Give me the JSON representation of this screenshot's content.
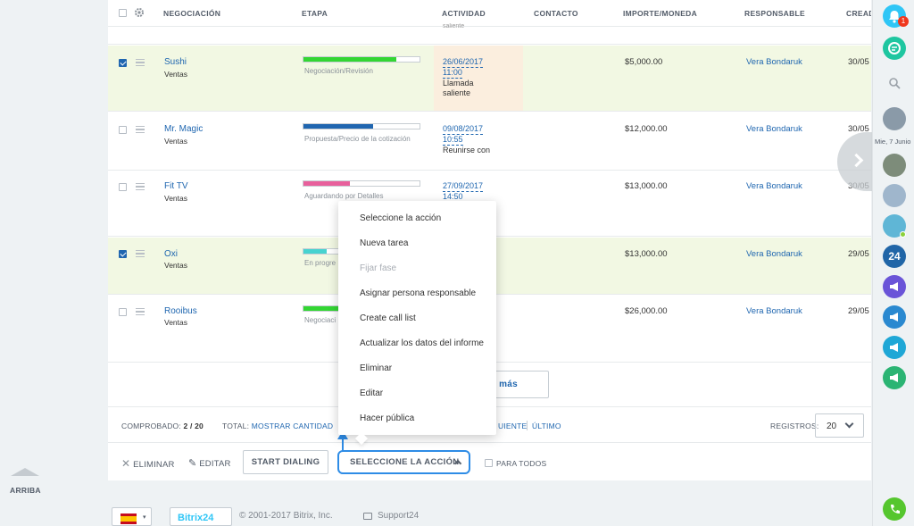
{
  "grid": {
    "columns": [
      "NEGOCIACIÓN",
      "ETAPA",
      "ACTIVIDAD",
      "CONTACTO",
      "IMPORTE/MONEDA",
      "RESPONSABLE",
      "CREAD"
    ],
    "prev_row_text": "saliente",
    "rows": [
      {
        "name": "Sushi",
        "category": "Ventas",
        "stage": "Negociación/Revisión",
        "stage_color": "#33d633",
        "stage_progress": 0.8,
        "activity_date": "26/06/2017",
        "activity_time": "11:00",
        "activity_line1": "Llamada",
        "activity_line2": "saliente",
        "amount": "$5,000.00",
        "responsible": "Vera Bondaruk",
        "created": "30/05",
        "checked": true
      },
      {
        "name": "Mr. Magic",
        "category": "Ventas",
        "stage": "Propuesta/Precio de la cotización",
        "stage_color": "#2066b0",
        "stage_progress": 0.6,
        "activity_date": "09/08/2017",
        "activity_time": "10:55",
        "activity_line1": "Reunirse con",
        "activity_line2": "",
        "amount": "$12,000.00",
        "responsible": "Vera Bondaruk",
        "created": "30/05",
        "checked": false
      },
      {
        "name": "Fit TV",
        "category": "Ventas",
        "stage": "Aguardando por Detalles",
        "stage_color": "#e8609c",
        "stage_progress": 0.4,
        "activity_date": "27/09/2017",
        "activity_time": "14:50",
        "activity_line1": "",
        "activity_line2": "",
        "amount": "$13,000.00",
        "responsible": "Vera Bondaruk",
        "created": "30/05",
        "checked": false
      },
      {
        "name": "Oxi",
        "category": "Ventas",
        "stage": "En progre",
        "stage_color": "#47d3d0",
        "stage_progress": 0.2,
        "activity_date": "",
        "activity_time": "",
        "activity_line1": "",
        "activity_line2": "",
        "amount": "$13,000.00",
        "responsible": "Vera Bondaruk",
        "created": "29/05",
        "checked": true
      },
      {
        "name": "Rooibus",
        "category": "Ventas",
        "stage": "Negociaci",
        "stage_color": "#33d633",
        "stage_progress": 0.8,
        "activity_date": "",
        "activity_time": "",
        "activity_line1": "",
        "activity_line2": "",
        "amount": "$26,000.00",
        "responsible": "Vera Bondaruk",
        "created": "29/05",
        "checked": false
      }
    ],
    "more_label": "r más"
  },
  "pager": {
    "checked_label": "COMPROBADO:",
    "checked_value": "2 / 20",
    "total_label": "TOTAL:",
    "total_link": "MOSTRAR CANTIDAD",
    "next": "UIENTE",
    "last": "ÚLTIMO",
    "records_label": "REGISTROS:",
    "records_value": "20"
  },
  "actions": {
    "delete": "ELIMINAR",
    "edit": "EDITAR",
    "start_dialing": "START DIALING",
    "select_action": "SELECCIONE LA ACCIÓN",
    "for_all": "PARA TODOS"
  },
  "menu": {
    "items": [
      {
        "label": "Seleccione la acción",
        "disabled": false
      },
      {
        "label": "Nueva tarea",
        "disabled": false
      },
      {
        "label": "Fijar fase",
        "disabled": true
      },
      {
        "label": "Asignar persona responsable",
        "disabled": false
      },
      {
        "label": "Create call list",
        "disabled": false
      },
      {
        "label": "Actualizar los datos del informe",
        "disabled": false
      },
      {
        "label": "Eliminar",
        "disabled": false
      },
      {
        "label": "Editar",
        "disabled": false
      },
      {
        "label": "Hacer pública",
        "disabled": false
      }
    ]
  },
  "left": {
    "up_label": "ARRIBA"
  },
  "sidebar": {
    "date_label": "Mie, 7 Junio",
    "notification_count": "1",
    "bitrix_badge": "24",
    "colors": {
      "notify": "#2fc6f6",
      "chat": "#1ec6a0",
      "bitrix": "#2065a7",
      "purple": "#6a54d8",
      "blue": "#2a89d0",
      "teal": "#1fa7d6",
      "green": "#2bb473",
      "phone": "#55c62e"
    }
  },
  "footer": {
    "logo_text": "Bitrix24",
    "copyright": "© 2001-2017 Bitrix, Inc.",
    "support": "Support24"
  }
}
